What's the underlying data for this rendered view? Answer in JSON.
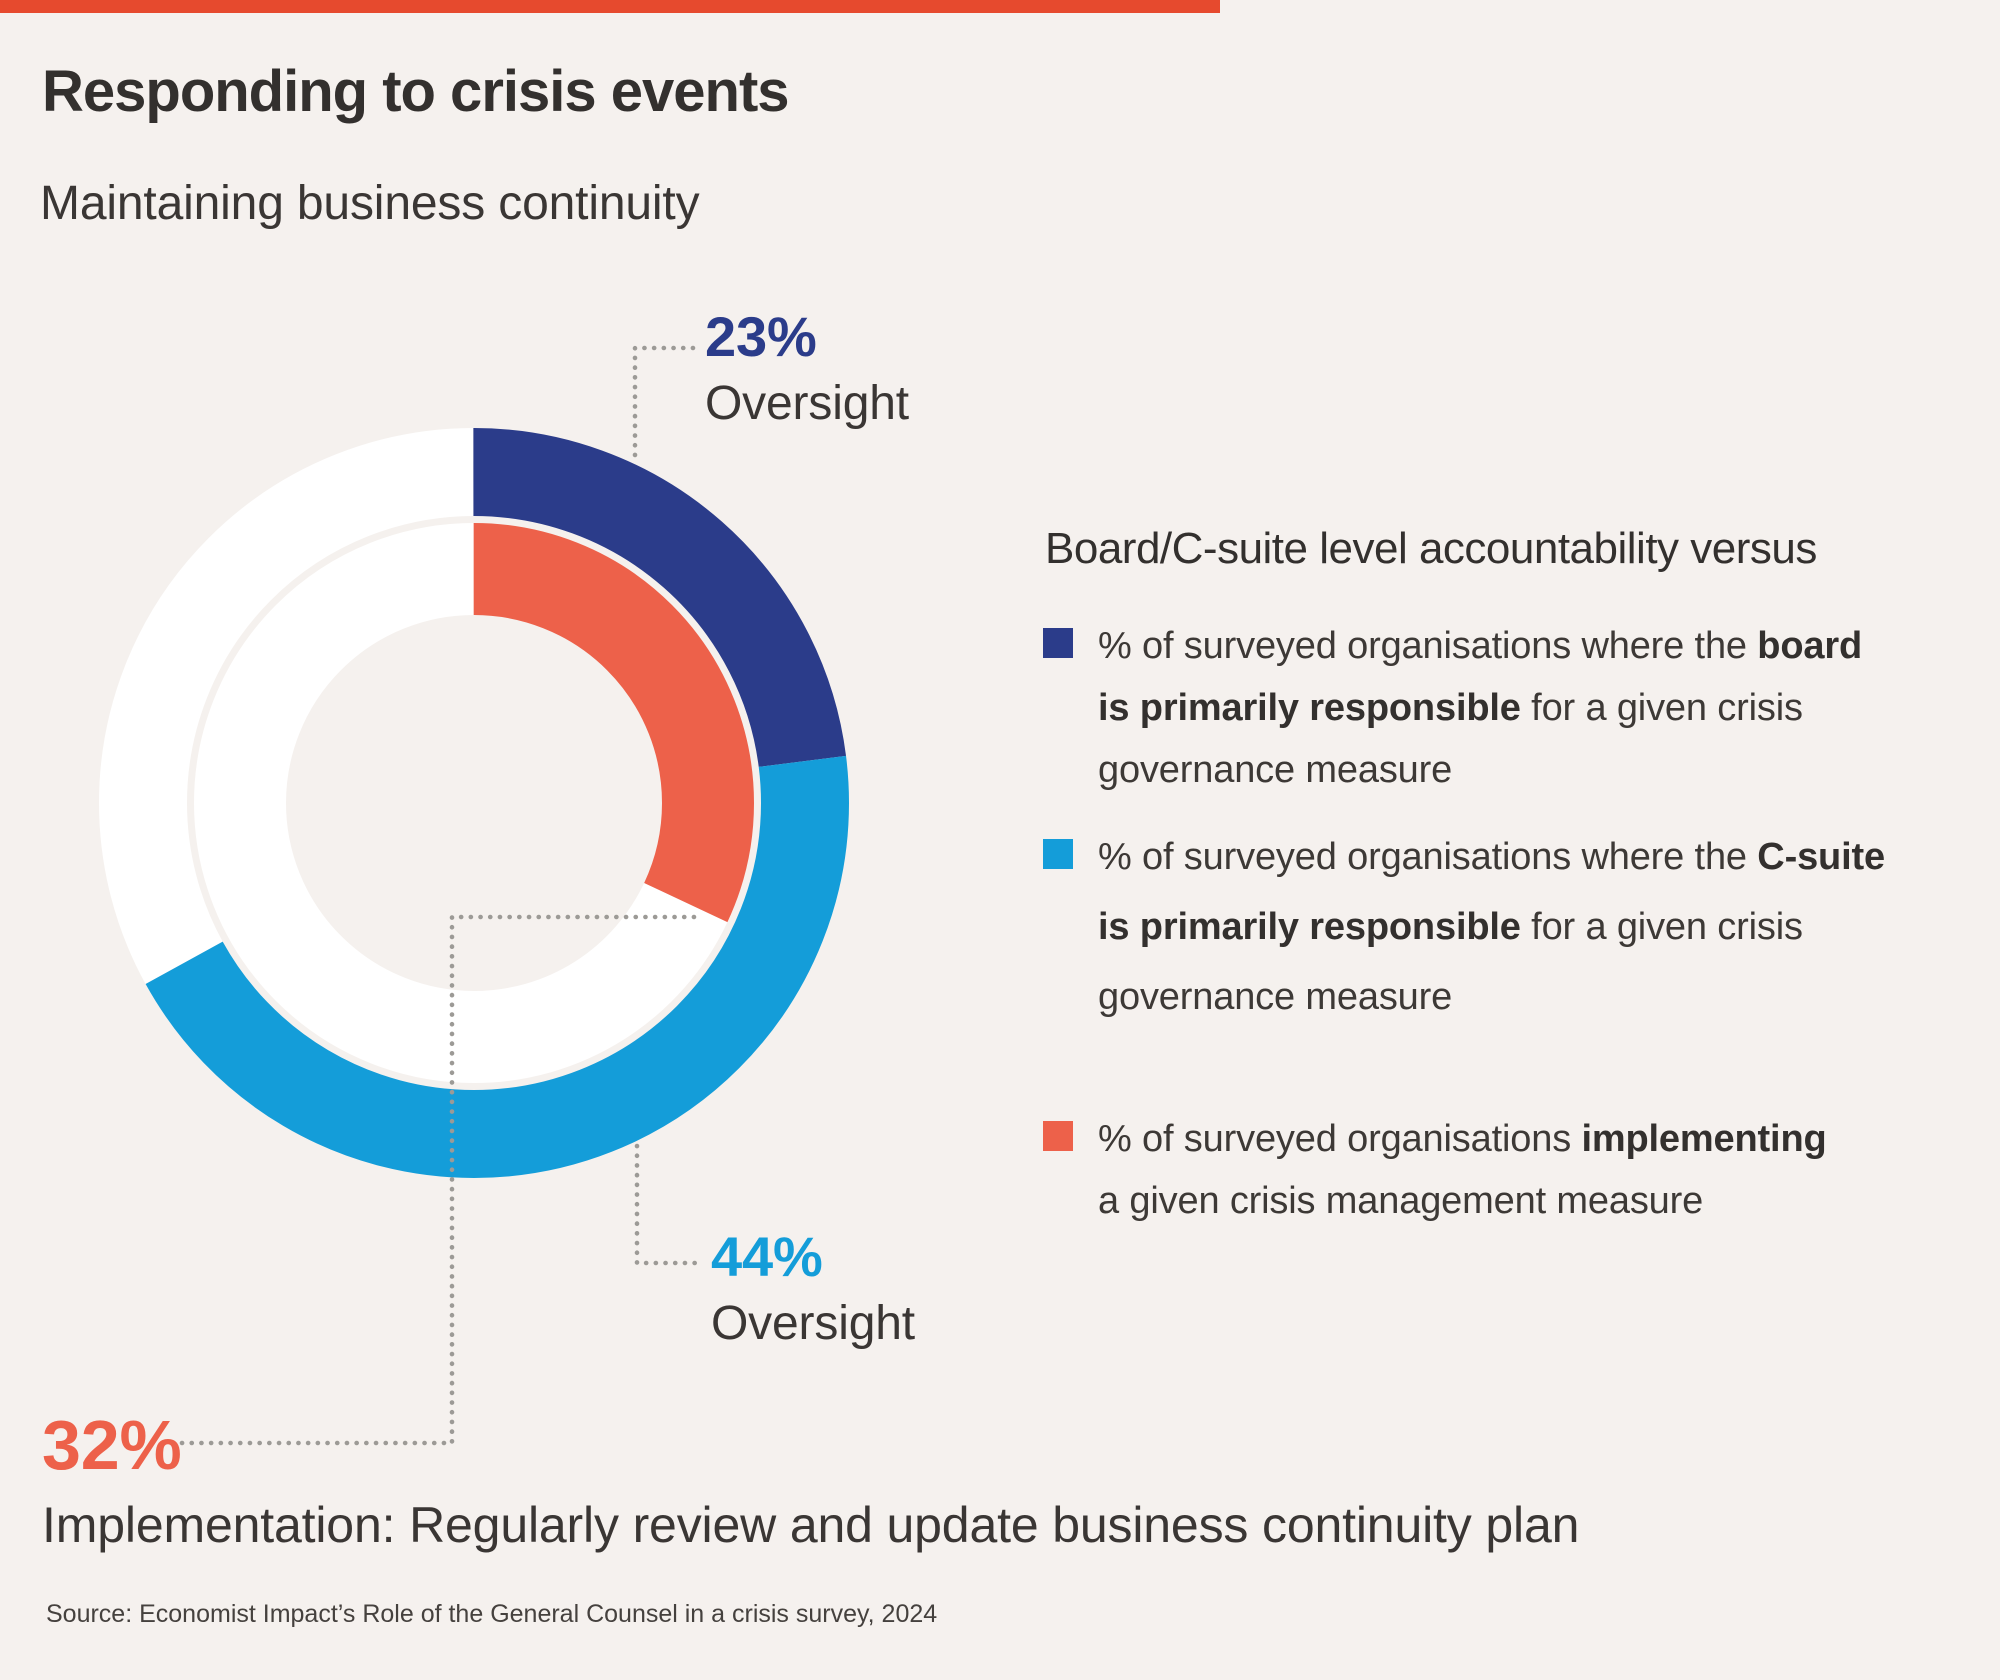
{
  "page": {
    "title": "Responding to crisis events",
    "subtitle": "Maintaining business continuity",
    "source": "Source: Economist Impact’s Role of the General Counsel in a crisis survey, 2024"
  },
  "colors": {
    "background": "#f5f1ee",
    "accent_bar": "#e64a2e",
    "board_navy": "#2b3c8a",
    "csuite_blue": "#149dd9",
    "implementation_orange": "#ed614a",
    "ring_white": "#ffffff",
    "leader_dots": "#9c9a96",
    "text_dark": "#33302e"
  },
  "callouts": {
    "board": {
      "value": "23%",
      "label": "Oversight"
    },
    "csuite": {
      "value": "44%",
      "label": "Oversight"
    },
    "implementation": {
      "value": "32%",
      "label": "Implementation: Regularly review and update business continuity plan"
    }
  },
  "legend": {
    "heading": "Board/C-suite level accountability versus",
    "items": [
      {
        "color": "#2b3c8a",
        "lines": [
          [
            {
              "t": "% of surveyed organisations where the ",
              "b": false
            },
            {
              "t": "board",
              "b": true
            }
          ],
          [
            {
              "t": "is primarily responsible",
              "b": true
            },
            {
              "t": " for a given crisis",
              "b": false
            }
          ],
          [
            {
              "t": "governance measure",
              "b": false
            }
          ]
        ]
      },
      {
        "color": "#149dd9",
        "lines": [
          [
            {
              "t": "% of surveyed organisations where the ",
              "b": false
            },
            {
              "t": "C-suite",
              "b": true
            }
          ],
          [
            {
              "t": "is primarily responsible",
              "b": true
            },
            {
              "t": " for a given crisis",
              "b": false
            }
          ],
          [
            {
              "t": "governance measure",
              "b": false
            }
          ]
        ]
      },
      {
        "color": "#ed614a",
        "lines": [
          [
            {
              "t": "% of surveyed organisations ",
              "b": false
            },
            {
              "t": "implementing",
              "b": true
            }
          ],
          [
            {
              "t": "a given crisis management measure",
              "b": false
            }
          ]
        ]
      }
    ]
  },
  "chart_data": {
    "type": "pie",
    "subtype": "double_ring_donut",
    "title": "Responding to crisis events",
    "subtitle": "Maintaining business continuity",
    "measure": "Regularly review and update business continuity plan",
    "units": "% of surveyed organisations",
    "legend_position": "right",
    "rings": [
      {
        "name": "outer-ring-oversight",
        "segments": [
          {
            "label": "Board is primarily responsible (Oversight)",
            "value": 23,
            "color": "#2b3c8a"
          },
          {
            "label": "C-suite is primarily responsible (Oversight)",
            "value": 44,
            "color": "#149dd9"
          },
          {
            "label": "remainder",
            "value": 33,
            "color": "#ffffff"
          }
        ]
      },
      {
        "name": "inner-ring-implementation",
        "segments": [
          {
            "label": "Implementing the measure",
            "value": 32,
            "color": "#ed614a"
          },
          {
            "label": "remainder",
            "value": 68,
            "color": "#ffffff"
          }
        ]
      }
    ],
    "callouts": [
      {
        "value": 23,
        "text": "23% Oversight",
        "color": "#2b3c8a"
      },
      {
        "value": 44,
        "text": "44% Oversight",
        "color": "#149dd9"
      },
      {
        "value": 32,
        "text": "32% Implementation: Regularly review and update business continuity plan",
        "color": "#ed614a"
      }
    ]
  }
}
